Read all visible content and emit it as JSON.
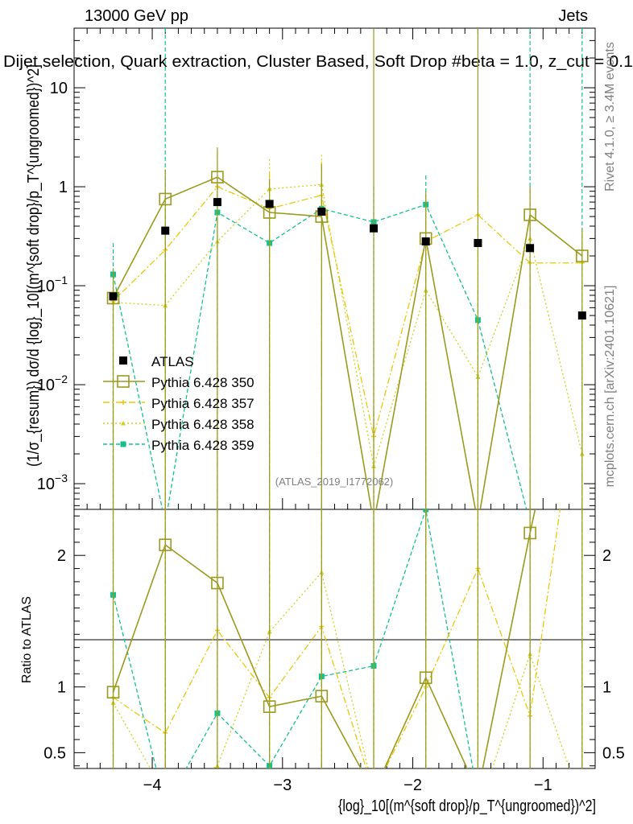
{
  "header": {
    "energy_label": "13000 GeV pp",
    "category_label": "Jets",
    "title": "Dijet selection, Quark extraction, Cluster Based, Soft Drop #beta = 1.0, z_cut = 0.1",
    "watermark": "(ATLAS_2019_I1772062)"
  },
  "side_labels": {
    "rivet": "Rivet 4.1.0, ≥ 3.4M events",
    "mcplots": "mcplots.cern.ch [arXiv:2401.10621]"
  },
  "colors": {
    "atlas": "#000000",
    "s350": "#9a9a1e",
    "s357": "#e8c80a",
    "s358": "#cdd21c",
    "s359": "#14c08c"
  },
  "chart_data": {
    "type": "line",
    "title": "Dijet selection, Quark extraction, Cluster Based, Soft Drop #beta = 1.0, z_cut = 0.1",
    "xlabel": "{log}_10[(m^{soft drop}/p_T^{ungroomed})^2]",
    "ylabel": "(1/σ_{resum}) dσ/d {log}_10[(m^{soft drop}/p_T^{ungroomed})^2]",
    "ratio_ylabel": "Ratio to ATLAS",
    "xlim": [
      -4.6,
      -0.6
    ],
    "ylim": [
      0.00055,
      40
    ],
    "yscale": "log",
    "ratio_ylim": [
      0.38,
      2.35
    ],
    "x_ticks": [
      -4,
      -3,
      -2,
      -1
    ],
    "x_tick_labels": [
      "−4",
      "−3",
      "−2",
      "−1"
    ],
    "y_ticks": [
      0.001,
      0.01,
      0.1,
      1,
      10
    ],
    "y_tick_labels": [
      "10−3",
      "10−2",
      "10−1",
      "1",
      "10"
    ],
    "ratio_ticks": [
      0.5,
      1,
      2
    ],
    "ratio_tick_labels": [
      "0.5",
      "1",
      "2"
    ],
    "x": [
      -4.3,
      -3.9,
      -3.5,
      -3.1,
      -2.7,
      -2.3,
      -1.9,
      -1.5,
      -1.1,
      -0.7
    ],
    "legend": [
      {
        "key": "atlas",
        "label": "ATLAS"
      },
      {
        "key": "s350",
        "label": "Pythia 6.428 350"
      },
      {
        "key": "s357",
        "label": "Pythia 6.428 357"
      },
      {
        "key": "s358",
        "label": "Pythia 6.428 358"
      },
      {
        "key": "s359",
        "label": "Pythia 6.428 359"
      }
    ],
    "atlas": [
      0.078,
      0.36,
      0.7,
      0.67,
      0.56,
      0.38,
      0.28,
      0.27,
      0.24,
      0.05
    ],
    "series": [
      {
        "key": "s350",
        "name": "Pythia 6.428 350",
        "marker": "square-open",
        "dash": "",
        "values": [
          0.075,
          0.75,
          1.25,
          0.55,
          0.5,
          0.0004,
          0.3,
          0.0004,
          0.52,
          0.2
        ],
        "errhi": [
          0.15,
          1.5,
          2.5,
          1.2,
          1.7,
          0,
          0.9,
          0,
          1.0,
          0.38
        ],
        "ratio": [
          0.96,
          2.08,
          1.79,
          0.85,
          0.93,
          0.2,
          1.07,
          0.2,
          2.17,
          4.0
        ]
      },
      {
        "key": "s357",
        "name": "Pythia 6.428 357",
        "marker": "star",
        "dash": "8,3,2,3",
        "values": [
          0.07,
          0.23,
          1.0,
          0.6,
          0.82,
          0.003,
          0.28,
          0.52,
          0.17,
          0.17
        ],
        "errhi": [
          0.13,
          0.6,
          2.2,
          1.4,
          1.8,
          0.01,
          0.8,
          1.0,
          0.6,
          0.35
        ],
        "ratio": [
          0.92,
          0.65,
          1.43,
          0.92,
          1.46,
          0.2,
          1.0,
          1.9,
          0.78,
          3.5
        ]
      },
      {
        "key": "s358",
        "name": "Pythia 6.428 358",
        "marker": "triangle",
        "dash": "2,3",
        "values": [
          0.068,
          0.063,
          0.28,
          0.95,
          1.05,
          0.0015,
          0.09,
          0.012,
          0.3,
          0.002
        ],
        "errhi": [
          0.12,
          0.35,
          0.9,
          1.9,
          2.1,
          0.006,
          0.5,
          0.05,
          0.8,
          0.01
        ],
        "ratio": [
          0.88,
          0.18,
          0.4,
          1.42,
          1.87,
          0.2,
          0.32,
          0.05,
          1.25,
          0.1
        ]
      },
      {
        "key": "s359",
        "name": "Pythia 6.428 359",
        "marker": "square",
        "dash": "5,3",
        "values": [
          0.13,
          0.0004,
          0.55,
          0.27,
          0.6,
          0.44,
          0.66,
          0.045,
          0.0004,
          0.0004
        ],
        "errhi": [
          0.27,
          0,
          1.2,
          0.7,
          1.6,
          1.0,
          1.3,
          0.09,
          0,
          0
        ],
        "ratio": [
          1.7,
          0.1,
          0.8,
          0.4,
          1.08,
          1.16,
          2.35,
          0.17,
          0.1,
          0.1
        ]
      }
    ]
  }
}
